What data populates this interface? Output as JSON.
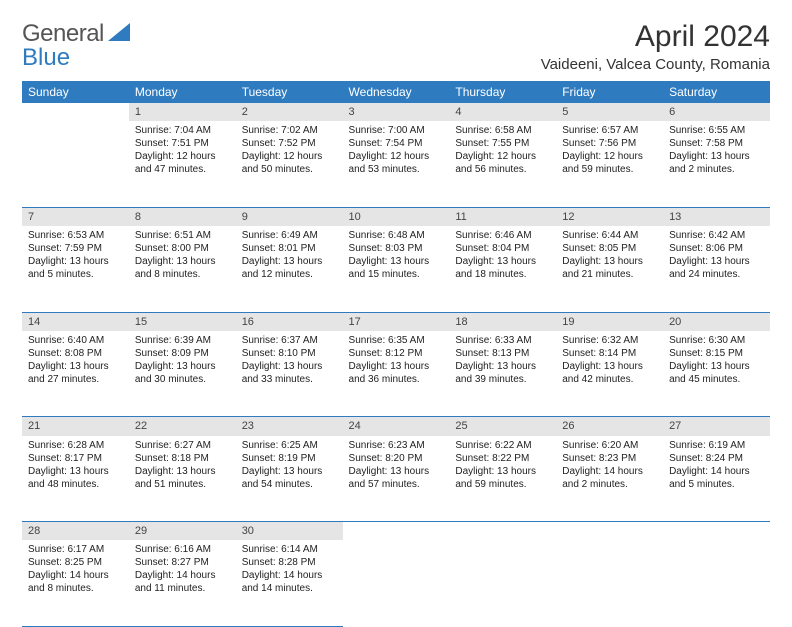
{
  "brand": {
    "text1": "General",
    "text2": "Blue"
  },
  "title": "April 2024",
  "location": "Vaideeni, Valcea County, Romania",
  "headers": [
    "Sunday",
    "Monday",
    "Tuesday",
    "Wednesday",
    "Thursday",
    "Friday",
    "Saturday"
  ],
  "colors": {
    "accent": "#2f7bbf",
    "dayStrip": "#e5e5e5"
  },
  "weeks": [
    {
      "nums": [
        "",
        "1",
        "2",
        "3",
        "4",
        "5",
        "6"
      ],
      "cells": [
        null,
        {
          "sr": "Sunrise: 7:04 AM",
          "ss": "Sunset: 7:51 PM",
          "d1": "Daylight: 12 hours",
          "d2": "and 47 minutes."
        },
        {
          "sr": "Sunrise: 7:02 AM",
          "ss": "Sunset: 7:52 PM",
          "d1": "Daylight: 12 hours",
          "d2": "and 50 minutes."
        },
        {
          "sr": "Sunrise: 7:00 AM",
          "ss": "Sunset: 7:54 PM",
          "d1": "Daylight: 12 hours",
          "d2": "and 53 minutes."
        },
        {
          "sr": "Sunrise: 6:58 AM",
          "ss": "Sunset: 7:55 PM",
          "d1": "Daylight: 12 hours",
          "d2": "and 56 minutes."
        },
        {
          "sr": "Sunrise: 6:57 AM",
          "ss": "Sunset: 7:56 PM",
          "d1": "Daylight: 12 hours",
          "d2": "and 59 minutes."
        },
        {
          "sr": "Sunrise: 6:55 AM",
          "ss": "Sunset: 7:58 PM",
          "d1": "Daylight: 13 hours",
          "d2": "and 2 minutes."
        }
      ]
    },
    {
      "nums": [
        "7",
        "8",
        "9",
        "10",
        "11",
        "12",
        "13"
      ],
      "cells": [
        {
          "sr": "Sunrise: 6:53 AM",
          "ss": "Sunset: 7:59 PM",
          "d1": "Daylight: 13 hours",
          "d2": "and 5 minutes."
        },
        {
          "sr": "Sunrise: 6:51 AM",
          "ss": "Sunset: 8:00 PM",
          "d1": "Daylight: 13 hours",
          "d2": "and 8 minutes."
        },
        {
          "sr": "Sunrise: 6:49 AM",
          "ss": "Sunset: 8:01 PM",
          "d1": "Daylight: 13 hours",
          "d2": "and 12 minutes."
        },
        {
          "sr": "Sunrise: 6:48 AM",
          "ss": "Sunset: 8:03 PM",
          "d1": "Daylight: 13 hours",
          "d2": "and 15 minutes."
        },
        {
          "sr": "Sunrise: 6:46 AM",
          "ss": "Sunset: 8:04 PM",
          "d1": "Daylight: 13 hours",
          "d2": "and 18 minutes."
        },
        {
          "sr": "Sunrise: 6:44 AM",
          "ss": "Sunset: 8:05 PM",
          "d1": "Daylight: 13 hours",
          "d2": "and 21 minutes."
        },
        {
          "sr": "Sunrise: 6:42 AM",
          "ss": "Sunset: 8:06 PM",
          "d1": "Daylight: 13 hours",
          "d2": "and 24 minutes."
        }
      ]
    },
    {
      "nums": [
        "14",
        "15",
        "16",
        "17",
        "18",
        "19",
        "20"
      ],
      "cells": [
        {
          "sr": "Sunrise: 6:40 AM",
          "ss": "Sunset: 8:08 PM",
          "d1": "Daylight: 13 hours",
          "d2": "and 27 minutes."
        },
        {
          "sr": "Sunrise: 6:39 AM",
          "ss": "Sunset: 8:09 PM",
          "d1": "Daylight: 13 hours",
          "d2": "and 30 minutes."
        },
        {
          "sr": "Sunrise: 6:37 AM",
          "ss": "Sunset: 8:10 PM",
          "d1": "Daylight: 13 hours",
          "d2": "and 33 minutes."
        },
        {
          "sr": "Sunrise: 6:35 AM",
          "ss": "Sunset: 8:12 PM",
          "d1": "Daylight: 13 hours",
          "d2": "and 36 minutes."
        },
        {
          "sr": "Sunrise: 6:33 AM",
          "ss": "Sunset: 8:13 PM",
          "d1": "Daylight: 13 hours",
          "d2": "and 39 minutes."
        },
        {
          "sr": "Sunrise: 6:32 AM",
          "ss": "Sunset: 8:14 PM",
          "d1": "Daylight: 13 hours",
          "d2": "and 42 minutes."
        },
        {
          "sr": "Sunrise: 6:30 AM",
          "ss": "Sunset: 8:15 PM",
          "d1": "Daylight: 13 hours",
          "d2": "and 45 minutes."
        }
      ]
    },
    {
      "nums": [
        "21",
        "22",
        "23",
        "24",
        "25",
        "26",
        "27"
      ],
      "cells": [
        {
          "sr": "Sunrise: 6:28 AM",
          "ss": "Sunset: 8:17 PM",
          "d1": "Daylight: 13 hours",
          "d2": "and 48 minutes."
        },
        {
          "sr": "Sunrise: 6:27 AM",
          "ss": "Sunset: 8:18 PM",
          "d1": "Daylight: 13 hours",
          "d2": "and 51 minutes."
        },
        {
          "sr": "Sunrise: 6:25 AM",
          "ss": "Sunset: 8:19 PM",
          "d1": "Daylight: 13 hours",
          "d2": "and 54 minutes."
        },
        {
          "sr": "Sunrise: 6:23 AM",
          "ss": "Sunset: 8:20 PM",
          "d1": "Daylight: 13 hours",
          "d2": "and 57 minutes."
        },
        {
          "sr": "Sunrise: 6:22 AM",
          "ss": "Sunset: 8:22 PM",
          "d1": "Daylight: 13 hours",
          "d2": "and 59 minutes."
        },
        {
          "sr": "Sunrise: 6:20 AM",
          "ss": "Sunset: 8:23 PM",
          "d1": "Daylight: 14 hours",
          "d2": "and 2 minutes."
        },
        {
          "sr": "Sunrise: 6:19 AM",
          "ss": "Sunset: 8:24 PM",
          "d1": "Daylight: 14 hours",
          "d2": "and 5 minutes."
        }
      ]
    },
    {
      "nums": [
        "28",
        "29",
        "30",
        "",
        "",
        "",
        ""
      ],
      "cells": [
        {
          "sr": "Sunrise: 6:17 AM",
          "ss": "Sunset: 8:25 PM",
          "d1": "Daylight: 14 hours",
          "d2": "and 8 minutes."
        },
        {
          "sr": "Sunrise: 6:16 AM",
          "ss": "Sunset: 8:27 PM",
          "d1": "Daylight: 14 hours",
          "d2": "and 11 minutes."
        },
        {
          "sr": "Sunrise: 6:14 AM",
          "ss": "Sunset: 8:28 PM",
          "d1": "Daylight: 14 hours",
          "d2": "and 14 minutes."
        },
        null,
        null,
        null,
        null
      ]
    }
  ]
}
